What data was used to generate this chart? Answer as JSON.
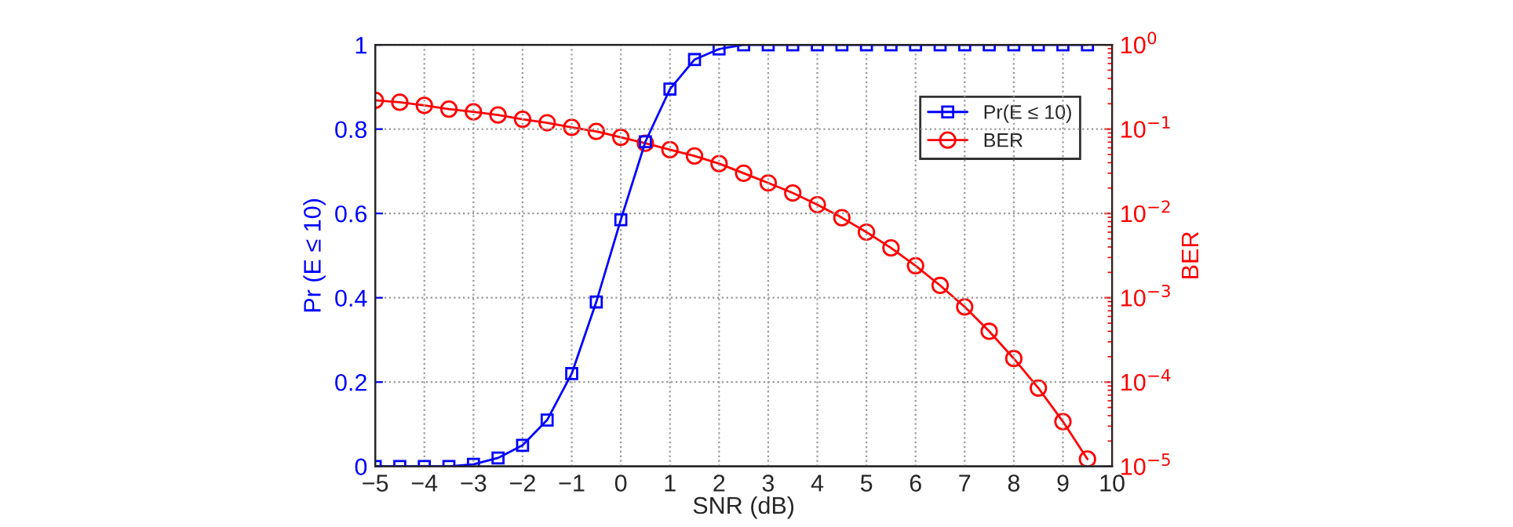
{
  "chart_data": {
    "type": "line",
    "xlabel": "SNR (dB)",
    "ylabel": "Pr (E ≤ 10)",
    "y2label": "BER",
    "x": [
      -5,
      -4.5,
      -4,
      -3.5,
      -3,
      -2.5,
      -2,
      -1.5,
      -1,
      -0.5,
      0,
      0.5,
      1,
      1.5,
      2,
      2.5,
      3,
      3.5,
      4,
      4.5,
      5,
      5.5,
      6,
      6.5,
      7,
      7.5,
      8,
      8.5,
      9,
      9.5
    ],
    "series": [
      {
        "name": "Pr(E ≤ 10)",
        "color": "#0000ff",
        "marker": "square",
        "values": [
          0,
          0,
          0,
          0,
          0.005,
          0.02,
          0.05,
          0.11,
          0.22,
          0.39,
          0.585,
          0.77,
          0.895,
          0.965,
          0.99,
          1,
          1,
          1,
          1,
          1,
          1,
          1,
          1,
          1,
          1,
          1,
          1,
          1,
          1,
          1
        ]
      },
      {
        "name": "BER",
        "color": "#ff0000",
        "marker": "circle",
        "axis": "y2",
        "values": [
          0.22,
          0.208,
          0.191,
          0.173,
          0.16,
          0.147,
          0.131,
          0.119,
          0.105,
          0.094,
          0.08,
          0.068,
          0.057,
          0.048,
          0.039,
          0.03,
          0.023,
          0.0175,
          0.0127,
          0.0089,
          0.006,
          0.0039,
          0.0024,
          0.0014,
          0.00078,
          0.0004,
          0.00019,
          8.5e-05,
          3.4e-05,
          1.22e-05
        ]
      }
    ],
    "xlim": [
      -5,
      10
    ],
    "xticks": [
      -5,
      -4,
      -3,
      -2,
      -1,
      0,
      1,
      2,
      3,
      4,
      5,
      6,
      7,
      8,
      9,
      10
    ],
    "ylim": [
      0,
      1
    ],
    "yticks": [
      0,
      0.2,
      0.4,
      0.6,
      0.8,
      1
    ],
    "y2lim": [
      1e-05,
      1
    ],
    "y2ticks": [
      {
        "value": 1e-05,
        "label": "10$^{−5}$"
      },
      {
        "value": 0.0001,
        "label": "10$^{−4}$"
      },
      {
        "value": 0.001,
        "label": "10$^{−3}$"
      },
      {
        "value": 0.01,
        "label": "10$^{−2}$"
      },
      {
        "value": 0.1,
        "label": "10$^{−1}$"
      },
      {
        "value": 1,
        "label": "10$^{0}$"
      }
    ],
    "log": "y2",
    "grid": true,
    "legend": "top right",
    "line_style": "solid"
  }
}
